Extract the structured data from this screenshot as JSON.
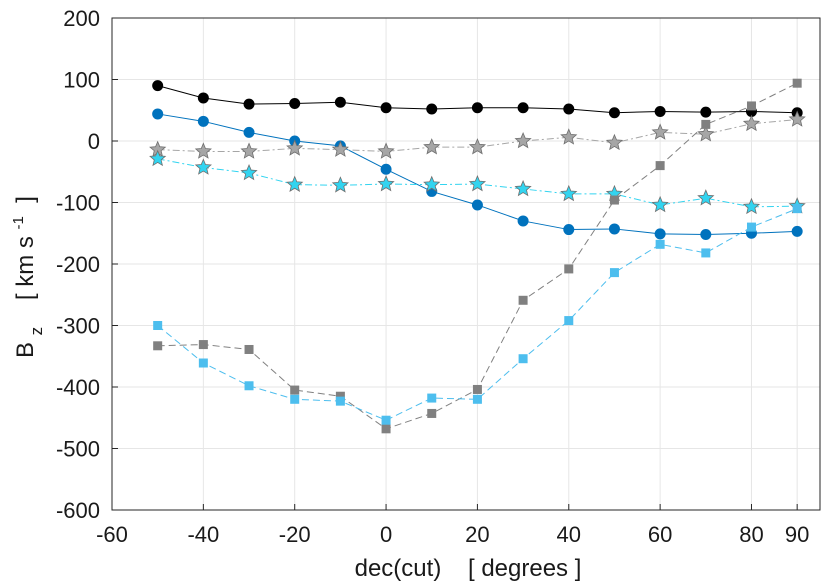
{
  "chart_data": {
    "type": "line",
    "title": "",
    "xlabel": "dec(cut)    [ degrees ]",
    "ylabel": {
      "main": "B",
      "sub": "z",
      "units_pre": "[ km s",
      "units_sup": "-1",
      "units_post": " ]"
    },
    "xlim": [
      -60,
      95
    ],
    "ylim": [
      -600,
      200
    ],
    "xticks": [
      -60,
      -40,
      -20,
      0,
      20,
      40,
      60,
      80,
      90
    ],
    "yticks": [
      -600,
      -500,
      -400,
      -300,
      -200,
      -100,
      0,
      100,
      200
    ],
    "grid": true,
    "x": [
      -50,
      -40,
      -30,
      -20,
      -10,
      0,
      10,
      20,
      30,
      40,
      50,
      60,
      70,
      80,
      90
    ],
    "series": [
      {
        "name": "black-circles",
        "color": "#000000",
        "marker": "circle",
        "dash": "none",
        "values": [
          90,
          70,
          60,
          61,
          63,
          54,
          52,
          54,
          54,
          52,
          46,
          48,
          47,
          48,
          46
        ]
      },
      {
        "name": "blue-circles",
        "color": "#0072bd",
        "marker": "circle",
        "dash": "none",
        "values": [
          44,
          32,
          14,
          0,
          -8,
          -46,
          -82,
          -104,
          -130,
          -144,
          -143,
          -151,
          -152,
          -150,
          -147
        ]
      },
      {
        "name": "grey-stars",
        "color": "#a6a6a6",
        "marker": "star",
        "dash": "dashdot",
        "values": [
          -14,
          -17,
          -17,
          -12,
          -14,
          -17,
          -10,
          -10,
          0,
          6,
          -3,
          14,
          11,
          28,
          35
        ]
      },
      {
        "name": "cyan-stars",
        "color": "#32d4f0",
        "marker": "star",
        "dash": "dashdot",
        "values": [
          -29,
          -43,
          -52,
          -71,
          -72,
          -70,
          -71,
          -70,
          -78,
          -86,
          -86,
          -104,
          -93,
          -107,
          -106
        ]
      },
      {
        "name": "grey-squares",
        "color": "#808080",
        "marker": "square",
        "dash": "dash",
        "values": [
          -333,
          -331,
          -339,
          -405,
          -415,
          -468,
          -443,
          -404,
          -259,
          -208,
          -96,
          -40,
          27,
          57,
          94
        ]
      },
      {
        "name": "lightblue-squares",
        "color": "#4dbeee",
        "marker": "square",
        "dash": "dash",
        "values": [
          -300,
          -361,
          -398,
          -420,
          -423,
          -454,
          -418,
          -420,
          -354,
          -292,
          -214,
          -168,
          -182,
          -140,
          -110
        ]
      }
    ]
  }
}
